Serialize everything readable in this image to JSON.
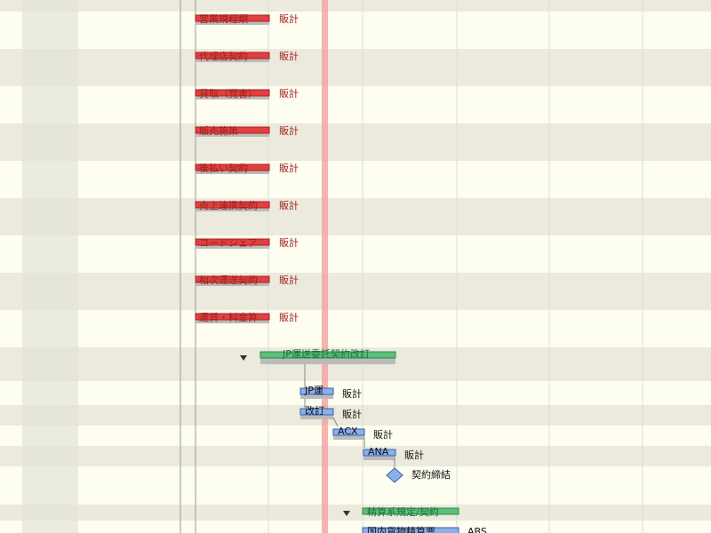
{
  "tasks": [
    {
      "label": "営業規程類",
      "resource": "販計"
    },
    {
      "label": "代理店契約",
      "resource": "販計"
    },
    {
      "label": "貸取（覚書）",
      "resource": "販計"
    },
    {
      "label": "販売施策",
      "resource": "販計"
    },
    {
      "label": "後払い契約",
      "resource": "販計"
    },
    {
      "label": "売上連携契約",
      "resource": "販計"
    },
    {
      "label": "コードシェア",
      "resource": "販計"
    },
    {
      "label": "相次運送契約",
      "resource": "販計"
    },
    {
      "label": "運賃・料金算",
      "resource": "販計"
    }
  ],
  "group1": {
    "label": "JP運送委託契約改訂",
    "subtasks": [
      {
        "label": "JP運",
        "resource": "販計"
      },
      {
        "label": "改訂",
        "resource": "販計"
      },
      {
        "label": "ACX",
        "resource": "販計"
      },
      {
        "label": "ANA",
        "resource": "販計"
      }
    ],
    "milestone": "契約締結"
  },
  "group2": {
    "label": "精算系規定/契約",
    "subtasks": [
      {
        "label": "国内貨物精算票",
        "resource": "ABS"
      }
    ]
  }
}
